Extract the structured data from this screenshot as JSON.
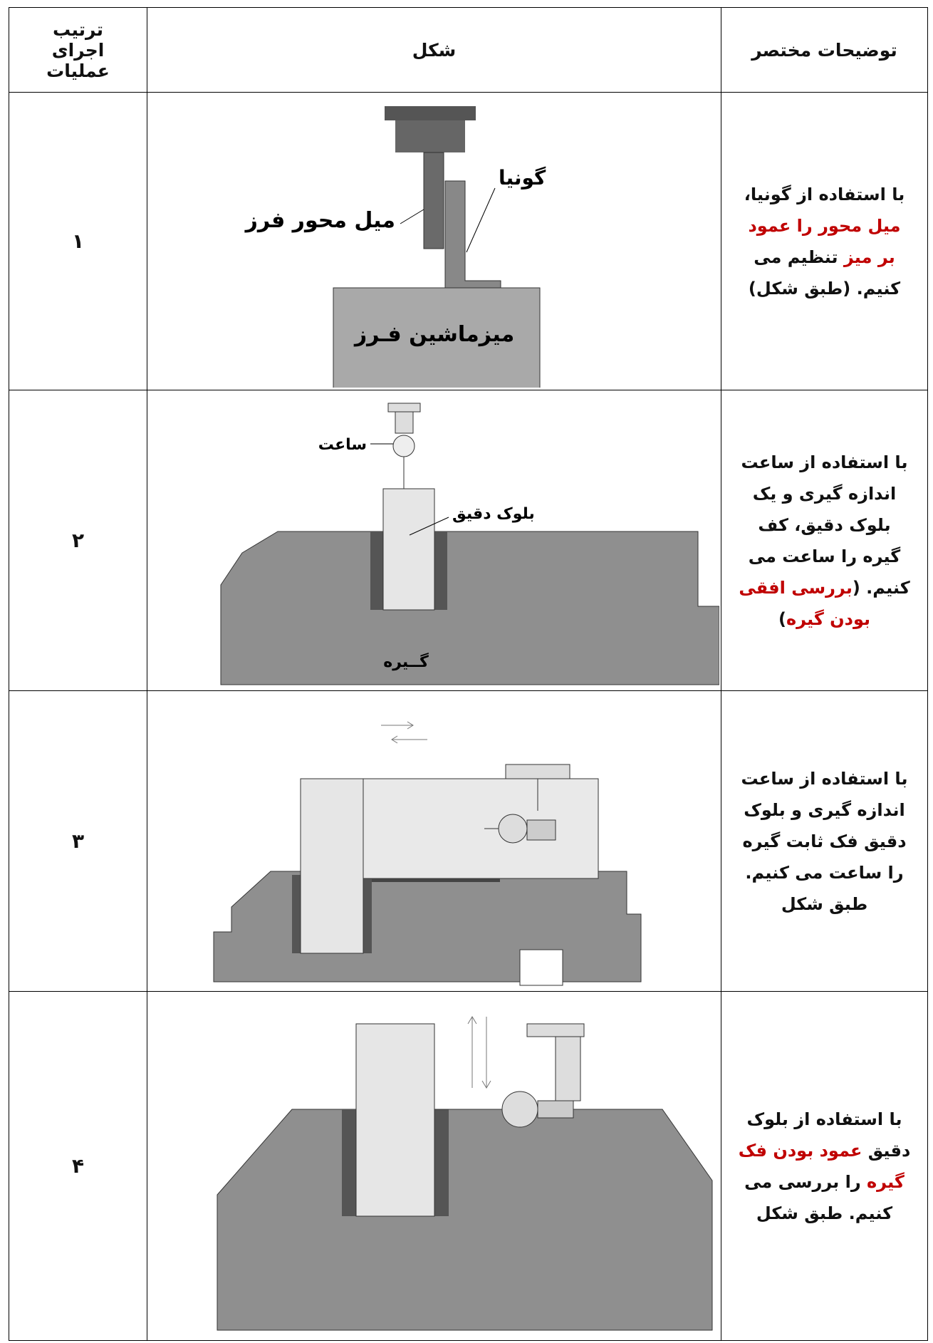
{
  "header": {
    "columns": [
      "ترتیب اجرای عملیات",
      "شکل",
      "توضیحات مختصر"
    ]
  },
  "rows": [
    {
      "number": "۱",
      "figure_labels": [
        "گونیا",
        "میل محور فرز",
        "میزماشین فـرز"
      ],
      "description": [
        {
          "text": "با استفاده از گونیا، "
        },
        {
          "text": "میل محور را عمود بر میز",
          "color": "#c00000"
        },
        {
          "text": " تنظیم می کنیم. (طبق شکل)"
        }
      ]
    },
    {
      "number": "۲",
      "figure_labels": [
        "ساعت",
        "بلوک دقیق",
        "گــیره"
      ],
      "description": [
        {
          "text": "با استفاده از ساعت اندازه گیری و یک بلوک دقیق، کف گیره را ساعت می کنیم. ("
        },
        {
          "text": "بررسی افقی بودن گیره",
          "color": "#c00000"
        },
        {
          "text": ")"
        }
      ]
    },
    {
      "number": "۳",
      "figure_labels": [],
      "description": [
        {
          "text": "با استفاده از ساعت اندازه گیری و بلوک دقیق فک ثابت گیره را ساعت می کنیم. طبق شکل"
        }
      ]
    },
    {
      "number": "۴",
      "figure_labels": [],
      "description": [
        {
          "text": "با استفاده از بلوک دقیق "
        },
        {
          "text": "عمود بودن فک گیره",
          "color": "#c00000"
        },
        {
          "text": " را بررسی می کنیم. طبق شکل"
        }
      ]
    }
  ]
}
